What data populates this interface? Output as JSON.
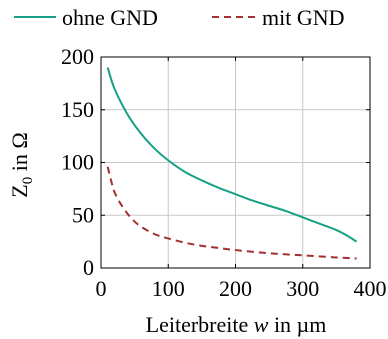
{
  "chart_data": {
    "type": "line",
    "xlabel": "Leiterbreite w in µm",
    "xlabel_parts": {
      "pre": "Leiterbreite ",
      "var": "w",
      "post": " in µm"
    },
    "ylabel": "Z0 in Ω",
    "ylabel_parts": {
      "base": "Z",
      "sub": "0",
      "post": " in Ω"
    },
    "xlim": [
      0,
      400
    ],
    "ylim": [
      0,
      200
    ],
    "xticks": [
      0,
      100,
      200,
      300,
      400
    ],
    "yticks": [
      0,
      50,
      100,
      150,
      200
    ],
    "grid": true,
    "legend": "top",
    "series": [
      {
        "name": "ohne GND",
        "color": "#16a085",
        "style": "solid",
        "x": [
          10,
          20,
          40,
          60,
          80,
          100,
          125,
          150,
          175,
          200,
          225,
          250,
          275,
          300,
          325,
          350,
          365,
          380
        ],
        "y": [
          190,
          170,
          145,
          127,
          113,
          102,
          91,
          83,
          76,
          70,
          64,
          59,
          54,
          48,
          42,
          36,
          31,
          25
        ]
      },
      {
        "name": "mit GND",
        "color": "#a33030",
        "style": "dashed",
        "x": [
          10,
          15,
          20,
          30,
          40,
          50,
          60,
          80,
          100,
          125,
          150,
          175,
          200,
          250,
          300,
          350,
          380
        ],
        "y": [
          96,
          83,
          72,
          60,
          51,
          44,
          39,
          32,
          28,
          24,
          21,
          19,
          17,
          14,
          12,
          10,
          9
        ]
      }
    ]
  }
}
